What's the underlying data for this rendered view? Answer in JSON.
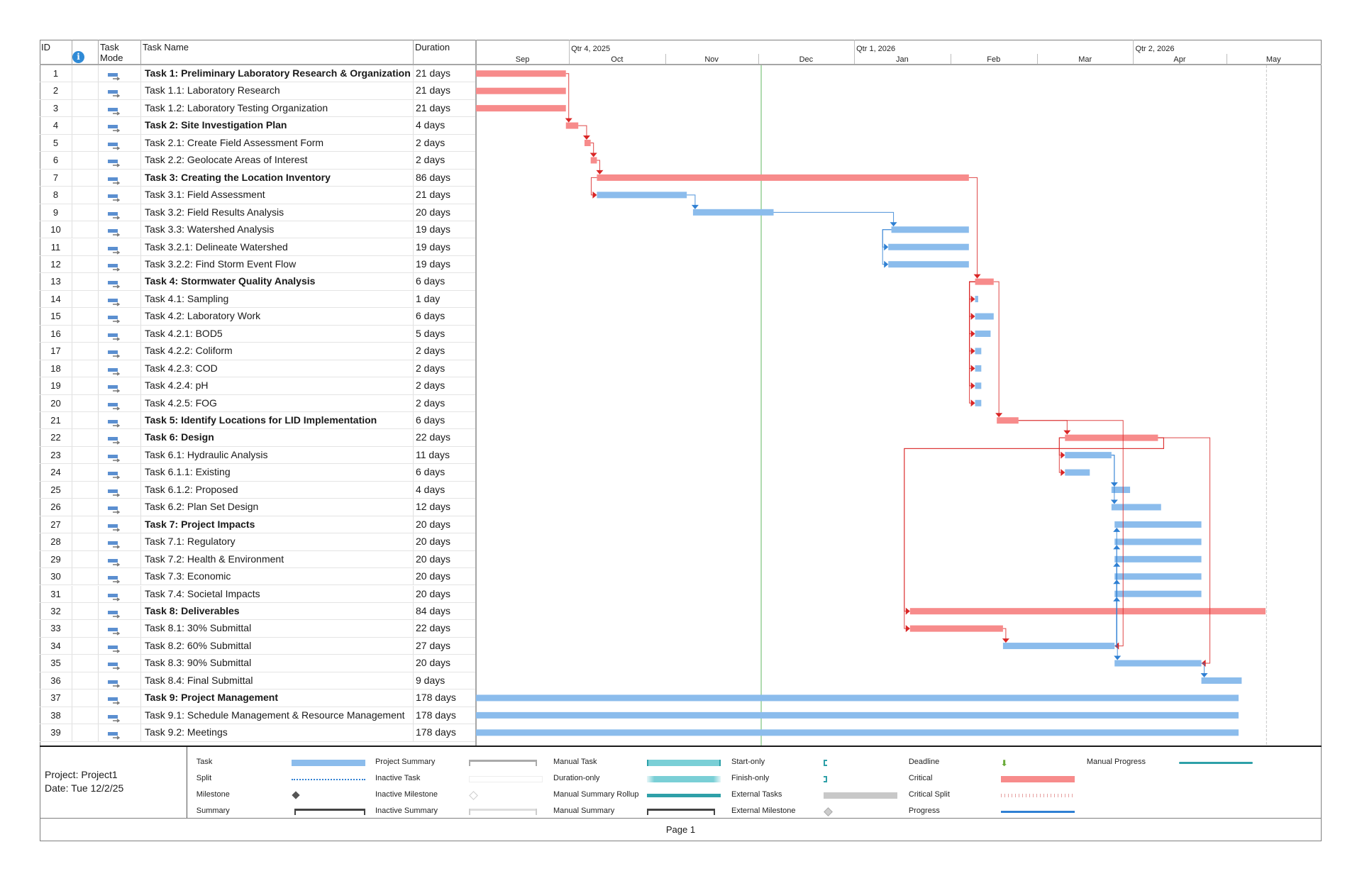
{
  "columns": {
    "id": "ID",
    "info_icon": "info-icon",
    "mode": "Task Mode",
    "mode_line1": "Task",
    "mode_line2": "Mode",
    "name": "Task Name",
    "duration": "Duration"
  },
  "timescale": {
    "base_date": "2025-09-01",
    "quarters": [
      {
        "label": "Qtr 4, 2025",
        "start": "2025-10-01"
      },
      {
        "label": "Qtr 1, 2026",
        "start": "2026-01-01"
      },
      {
        "label": "Qtr 2, 2026",
        "start": "2026-04-01"
      }
    ],
    "months": [
      {
        "label": "Sep",
        "start": "2025-09-01"
      },
      {
        "label": "Oct",
        "start": "2025-10-01"
      },
      {
        "label": "Nov",
        "start": "2025-11-01"
      },
      {
        "label": "Dec",
        "start": "2025-12-01"
      },
      {
        "label": "Jan",
        "start": "2026-01-01"
      },
      {
        "label": "Feb",
        "start": "2026-02-01"
      },
      {
        "label": "Mar",
        "start": "2026-03-01"
      },
      {
        "label": "Apr",
        "start": "2026-04-01"
      },
      {
        "label": "May",
        "start": "2026-05-01"
      }
    ],
    "end_date": "2026-06-01",
    "today": "2025-12-02",
    "deadline_line": "2026-05-14"
  },
  "colors": {
    "critical": "#f78b8b",
    "task": "#8bbcec",
    "critical_link": "#d92626",
    "task_link": "#2f80d3",
    "today": "#7cc37c",
    "mode_icon": "#5b8fd0"
  },
  "tasks": [
    {
      "id": 1,
      "name": "Task 1: Preliminary Laboratory Research & Organization",
      "duration": "21 days",
      "summary": true,
      "critical": true,
      "start": "2025-09-01",
      "finish": "2025-09-30"
    },
    {
      "id": 2,
      "name": "Task 1.1: Laboratory Research",
      "duration": "21 days",
      "summary": false,
      "critical": true,
      "start": "2025-09-01",
      "finish": "2025-09-30"
    },
    {
      "id": 3,
      "name": "Task 1.2: Laboratory Testing Organization",
      "duration": "21 days",
      "summary": false,
      "critical": true,
      "start": "2025-09-01",
      "finish": "2025-09-30"
    },
    {
      "id": 4,
      "name": "Task 2: Site Investigation Plan",
      "duration": "4 days",
      "summary": true,
      "critical": true,
      "start": "2025-09-30",
      "finish": "2025-10-04"
    },
    {
      "id": 5,
      "name": "Task 2.1: Create Field Assessment Form",
      "duration": "2 days",
      "summary": false,
      "critical": true,
      "start": "2025-10-06",
      "finish": "2025-10-08"
    },
    {
      "id": 6,
      "name": "Task 2.2: Geolocate Areas of Interest",
      "duration": "2 days",
      "summary": false,
      "critical": true,
      "start": "2025-10-08",
      "finish": "2025-10-10"
    },
    {
      "id": 7,
      "name": "Task 3: Creating the Location Inventory",
      "duration": "86 days",
      "summary": true,
      "critical": true,
      "start": "2025-10-10",
      "finish": "2026-02-07"
    },
    {
      "id": 8,
      "name": "Task 3.1: Field Assessment",
      "duration": "21 days",
      "summary": false,
      "critical": false,
      "start": "2025-10-10",
      "finish": "2025-11-08"
    },
    {
      "id": 9,
      "name": "Task 3.2: Field Results Analysis",
      "duration": "20 days",
      "summary": false,
      "critical": false,
      "start": "2025-11-10",
      "finish": "2025-12-06"
    },
    {
      "id": 10,
      "name": "Task 3.3: Watershed Analysis",
      "duration": "19 days",
      "summary": false,
      "critical": false,
      "start": "2026-01-13",
      "finish": "2026-02-07"
    },
    {
      "id": 11,
      "name": "Task 3.2.1: Delineate Watershed",
      "duration": "19 days",
      "summary": false,
      "critical": false,
      "start": "2026-01-12",
      "finish": "2026-02-07"
    },
    {
      "id": 12,
      "name": "Task 3.2.2: Find Storm Event Flow",
      "duration": "19 days",
      "summary": false,
      "critical": false,
      "start": "2026-01-12",
      "finish": "2026-02-07"
    },
    {
      "id": 13,
      "name": "Task 4: Stormwater Quality Analysis",
      "duration": "6 days",
      "summary": true,
      "critical": true,
      "start": "2026-02-09",
      "finish": "2026-02-15"
    },
    {
      "id": 14,
      "name": "Task 4.1: Sampling",
      "duration": "1 day",
      "summary": false,
      "critical": false,
      "start": "2026-02-09",
      "finish": "2026-02-10"
    },
    {
      "id": 15,
      "name": "Task 4.2: Laboratory Work",
      "duration": "6 days",
      "summary": false,
      "critical": false,
      "start": "2026-02-09",
      "finish": "2026-02-15"
    },
    {
      "id": 16,
      "name": "Task 4.2.1: BOD5",
      "duration": "5 days",
      "summary": false,
      "critical": false,
      "start": "2026-02-09",
      "finish": "2026-02-14"
    },
    {
      "id": 17,
      "name": "Task 4.2.2: Coliform",
      "duration": "2 days",
      "summary": false,
      "critical": false,
      "start": "2026-02-09",
      "finish": "2026-02-11"
    },
    {
      "id": 18,
      "name": "Task 4.2.3: COD",
      "duration": "2 days",
      "summary": false,
      "critical": false,
      "start": "2026-02-09",
      "finish": "2026-02-11"
    },
    {
      "id": 19,
      "name": "Task 4.2.4: pH",
      "duration": "2 days",
      "summary": false,
      "critical": false,
      "start": "2026-02-09",
      "finish": "2026-02-11"
    },
    {
      "id": 20,
      "name": "Task 4.2.5: FOG",
      "duration": "2 days",
      "summary": false,
      "critical": false,
      "start": "2026-02-09",
      "finish": "2026-02-11"
    },
    {
      "id": 21,
      "name": "Task 5: Identify Locations for LID Implementation",
      "duration": "6 days",
      "summary": true,
      "critical": true,
      "start": "2026-02-16",
      "finish": "2026-02-23"
    },
    {
      "id": 22,
      "name": "Task 6: Design",
      "duration": "22 days",
      "summary": true,
      "critical": true,
      "start": "2026-03-10",
      "finish": "2026-04-09"
    },
    {
      "id": 23,
      "name": "Task 6.1: Hydraulic Analysis",
      "duration": "11 days",
      "summary": false,
      "critical": false,
      "start": "2026-03-10",
      "finish": "2026-03-25"
    },
    {
      "id": 24,
      "name": "Task 6.1.1: Existing",
      "duration": "6 days",
      "summary": false,
      "critical": false,
      "start": "2026-03-10",
      "finish": "2026-03-18"
    },
    {
      "id": 25,
      "name": "Task 6.1.2: Proposed",
      "duration": "4 days",
      "summary": false,
      "critical": false,
      "start": "2026-03-25",
      "finish": "2026-03-31"
    },
    {
      "id": 26,
      "name": "Task 6.2: Plan Set Design",
      "duration": "12 days",
      "summary": false,
      "critical": false,
      "start": "2026-03-25",
      "finish": "2026-04-10"
    },
    {
      "id": 27,
      "name": "Task 7: Project Impacts",
      "duration": "20 days",
      "summary": true,
      "critical": false,
      "start": "2026-03-26",
      "finish": "2026-04-23"
    },
    {
      "id": 28,
      "name": "Task 7.1: Regulatory",
      "duration": "20 days",
      "summary": false,
      "critical": false,
      "start": "2026-03-26",
      "finish": "2026-04-23"
    },
    {
      "id": 29,
      "name": "Task 7.2: Health & Environment",
      "duration": "20 days",
      "summary": false,
      "critical": false,
      "start": "2026-03-26",
      "finish": "2026-04-23"
    },
    {
      "id": 30,
      "name": "Task 7.3: Economic",
      "duration": "20 days",
      "summary": false,
      "critical": false,
      "start": "2026-03-26",
      "finish": "2026-04-23"
    },
    {
      "id": 31,
      "name": "Task 7.4: Societal Impacts",
      "duration": "20 days",
      "summary": false,
      "critical": false,
      "start": "2026-03-26",
      "finish": "2026-04-23"
    },
    {
      "id": 32,
      "name": "Task 8: Deliverables",
      "duration": "84 days",
      "summary": true,
      "critical": true,
      "start": "2026-01-19",
      "finish": "2026-05-14"
    },
    {
      "id": 33,
      "name": "Task 8.1: 30% Submittal",
      "duration": "22 days",
      "summary": false,
      "critical": true,
      "start": "2026-01-19",
      "finish": "2026-02-18"
    },
    {
      "id": 34,
      "name": "Task 8.2: 60% Submittal",
      "duration": "27 days",
      "summary": false,
      "critical": false,
      "start": "2026-02-18",
      "finish": "2026-03-26"
    },
    {
      "id": 35,
      "name": "Task 8.3: 90% Submittal",
      "duration": "20 days",
      "summary": false,
      "critical": false,
      "start": "2026-03-26",
      "finish": "2026-04-23"
    },
    {
      "id": 36,
      "name": "Task 8.4: Final Submittal",
      "duration": "9 days",
      "summary": false,
      "critical": false,
      "start": "2026-04-23",
      "finish": "2026-05-06"
    },
    {
      "id": 37,
      "name": "Task 9: Project Management",
      "duration": "178 days",
      "summary": true,
      "critical": false,
      "start": "2025-09-01",
      "finish": "2026-05-05"
    },
    {
      "id": 38,
      "name": "Task 9.1: Schedule Management & Resource Management",
      "duration": "178 days",
      "summary": false,
      "critical": false,
      "start": "2025-09-01",
      "finish": "2026-05-05"
    },
    {
      "id": 39,
      "name": "Task 9.2: Meetings",
      "duration": "178 days",
      "summary": false,
      "critical": false,
      "start": "2025-09-01",
      "finish": "2026-05-05"
    }
  ],
  "links": [
    {
      "from": 1,
      "to": 4,
      "type": "FS",
      "critical": true
    },
    {
      "from": 4,
      "to": 5,
      "type": "FS",
      "critical": true
    },
    {
      "from": 5,
      "to": 6,
      "type": "FS",
      "critical": true
    },
    {
      "from": 6,
      "to": 7,
      "type": "FS",
      "critical": true
    },
    {
      "from": 7,
      "to": 8,
      "type": "SS",
      "critical": true
    },
    {
      "from": 8,
      "to": 9,
      "type": "FS",
      "critical": false
    },
    {
      "from": 9,
      "to": 10,
      "type": "FS",
      "critical": false
    },
    {
      "from": 10,
      "to": 11,
      "type": "SS",
      "critical": false
    },
    {
      "from": 10,
      "to": 12,
      "type": "SS",
      "critical": false
    },
    {
      "from": 7,
      "to": 13,
      "type": "FS",
      "critical": true
    },
    {
      "from": 13,
      "to": 14,
      "type": "SS",
      "critical": true
    },
    {
      "from": 13,
      "to": 15,
      "type": "SS",
      "critical": true
    },
    {
      "from": 13,
      "to": 16,
      "type": "SS",
      "critical": true
    },
    {
      "from": 13,
      "to": 17,
      "type": "SS",
      "critical": true
    },
    {
      "from": 13,
      "to": 18,
      "type": "SS",
      "critical": true
    },
    {
      "from": 13,
      "to": 19,
      "type": "SS",
      "critical": true
    },
    {
      "from": 13,
      "to": 20,
      "type": "SS",
      "critical": true
    },
    {
      "from": 13,
      "to": 21,
      "type": "FS",
      "critical": true
    },
    {
      "from": 21,
      "to": 22,
      "type": "FS",
      "critical": true
    },
    {
      "from": 22,
      "to": 23,
      "type": "SS",
      "critical": true
    },
    {
      "from": 22,
      "to": 24,
      "type": "SS",
      "critical": true
    },
    {
      "from": 23,
      "to": 25,
      "type": "FS",
      "critical": false
    },
    {
      "from": 23,
      "to": 26,
      "type": "FS",
      "critical": false
    },
    {
      "from": 22,
      "to": 32,
      "type": "FS-back",
      "critical": true
    },
    {
      "from": 22,
      "to": 33,
      "type": "FS-back",
      "critical": true
    },
    {
      "from": 33,
      "to": 34,
      "type": "FS",
      "critical": true
    },
    {
      "from": 21,
      "to": 34,
      "type": "FF",
      "critical": true
    },
    {
      "from": 22,
      "to": 35,
      "type": "FF",
      "critical": true
    },
    {
      "from": 34,
      "to": 27,
      "type": "UP",
      "critical": false
    },
    {
      "from": 34,
      "to": 28,
      "type": "UP",
      "critical": false
    },
    {
      "from": 34,
      "to": 29,
      "type": "UP",
      "critical": false
    },
    {
      "from": 34,
      "to": 30,
      "type": "UP",
      "critical": false
    },
    {
      "from": 34,
      "to": 31,
      "type": "UP",
      "critical": false
    },
    {
      "from": 34,
      "to": 35,
      "type": "FS",
      "critical": false
    },
    {
      "from": 35,
      "to": 36,
      "type": "FS",
      "critical": false
    }
  ],
  "project_info": {
    "project": "Project: Project1",
    "date": "Date: Tue 12/2/25"
  },
  "legend": [
    {
      "label": "Task",
      "symbol": "task"
    },
    {
      "label": "Split",
      "symbol": "split"
    },
    {
      "label": "Milestone",
      "symbol": "milestone"
    },
    {
      "label": "Summary",
      "symbol": "summary"
    },
    {
      "label": "Project Summary",
      "symbol": "project-summary"
    },
    {
      "label": "Inactive Task",
      "symbol": "inactive-task"
    },
    {
      "label": "Inactive Milestone",
      "symbol": "inactive-milestone"
    },
    {
      "label": "Inactive Summary",
      "symbol": "inactive-summary"
    },
    {
      "label": "Manual Task",
      "symbol": "manual-task"
    },
    {
      "label": "Duration-only",
      "symbol": "duration-only"
    },
    {
      "label": "Manual Summary Rollup",
      "symbol": "manual-summary-rollup"
    },
    {
      "label": "Manual Summary",
      "symbol": "manual-summary"
    },
    {
      "label": "Start-only",
      "symbol": "start-only"
    },
    {
      "label": "Finish-only",
      "symbol": "finish-only"
    },
    {
      "label": "External Tasks",
      "symbol": "external-tasks"
    },
    {
      "label": "External Milestone",
      "symbol": "external-milestone"
    },
    {
      "label": "Deadline",
      "symbol": "deadline"
    },
    {
      "label": "Critical",
      "symbol": "critical"
    },
    {
      "label": "Critical Split",
      "symbol": "critical-split"
    },
    {
      "label": "Progress",
      "symbol": "progress"
    },
    {
      "label": "Manual Progress",
      "symbol": "manual-progress"
    }
  ],
  "footer": {
    "page": "Page 1"
  }
}
